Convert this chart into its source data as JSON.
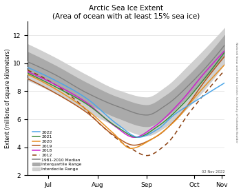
{
  "title": "Arctic Sea Ice Extent\n(Area of ocean with at least 15% sea ice)",
  "ylabel": "Extent (millions of square kilometers)",
  "rotated_label": "National Snow and Ice Data Center, University of Colorado Boulder",
  "date_label": "02 Nov 2022",
  "xlim_days": [
    183,
    307
  ],
  "ylim": [
    2,
    13
  ],
  "yticks": [
    2,
    4,
    6,
    8,
    10,
    12
  ],
  "month_ticks": [
    {
      "day": 196,
      "label": "Jul"
    },
    {
      "day": 227,
      "label": "Aug"
    },
    {
      "day": 258,
      "label": "Sep"
    },
    {
      "day": 288,
      "label": "Oct"
    },
    {
      "day": 305,
      "label": "Nov"
    }
  ],
  "colors": {
    "2022": "#4da6e8",
    "2021": "#3a8a3a",
    "2020": "#e89020",
    "2019": "#b05820",
    "2018": "#cc20cc",
    "2012": "#8b4010",
    "median": "#808080",
    "iqr": "#aaaaaa",
    "idr": "#d0d0d0"
  },
  "background": "#ffffff"
}
